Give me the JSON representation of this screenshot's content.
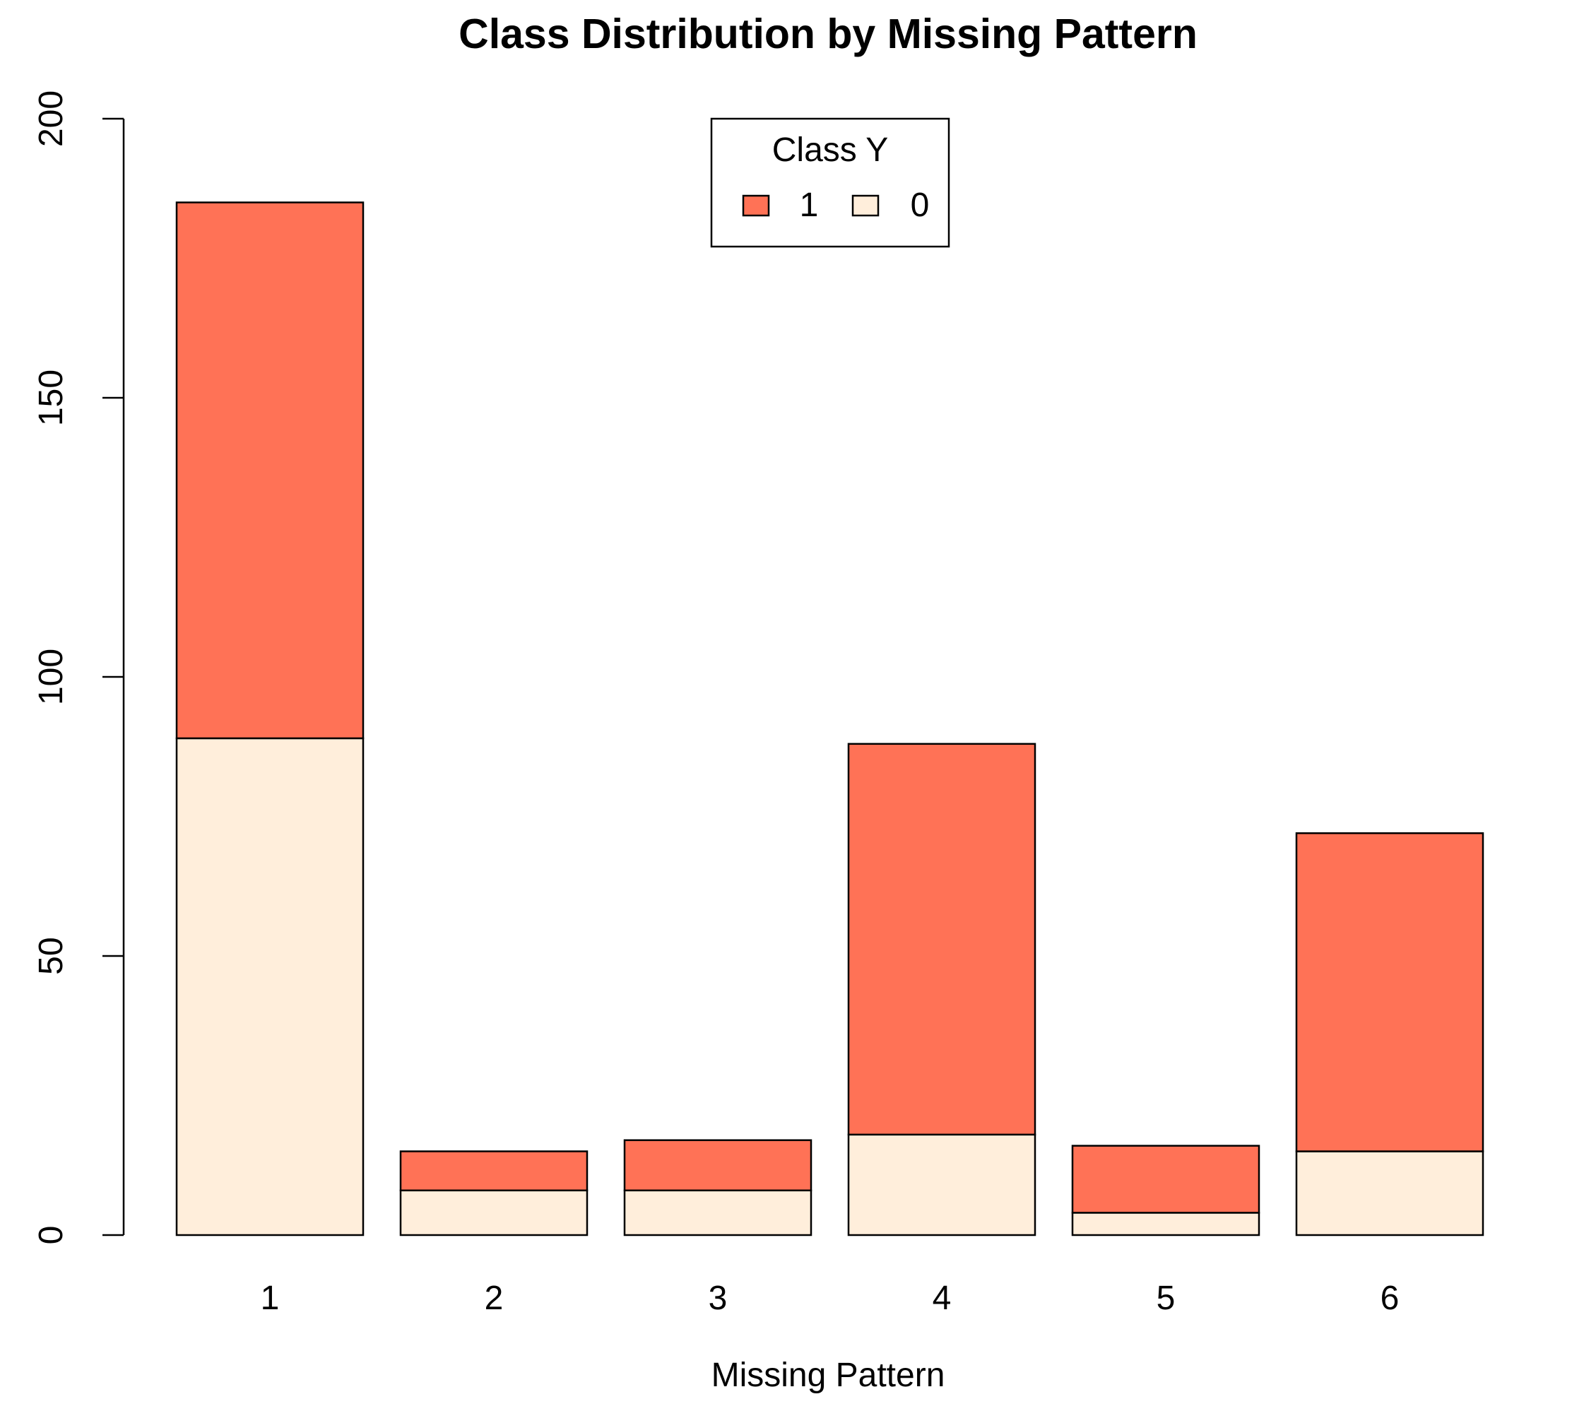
{
  "chart_data": {
    "type": "bar",
    "stacked": true,
    "title": "Class Distribution by Missing Pattern",
    "xlabel": "Missing Pattern",
    "ylabel": "",
    "categories": [
      "1",
      "2",
      "3",
      "4",
      "5",
      "6"
    ],
    "series": [
      {
        "name": "0",
        "color": "#FFEEDB",
        "values": [
          89,
          8,
          8,
          18,
          4,
          15
        ]
      },
      {
        "name": "1",
        "color": "#FF7256",
        "values": [
          96,
          7,
          9,
          70,
          12,
          57
        ]
      }
    ],
    "ylim": [
      0,
      200
    ],
    "yticks": [
      "0",
      "50",
      "100",
      "150",
      "200"
    ],
    "grid": false,
    "legend": {
      "title": "Class Y",
      "placement": "top-center",
      "entries": [
        "1",
        "0"
      ]
    }
  }
}
